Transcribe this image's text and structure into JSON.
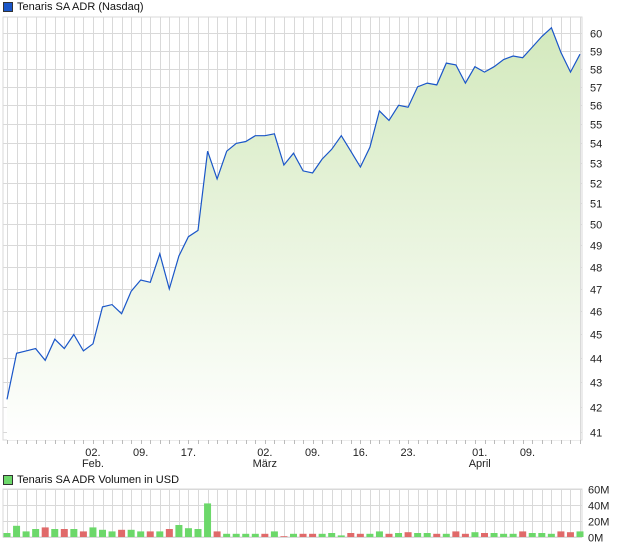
{
  "price_legend": "Tenaris SA ADR (Nasdaq)",
  "volume_legend": "Tenaris SA ADR Volumen in USD",
  "colors": {
    "line": "#1a56c8",
    "fill_top": "#d3e9bd",
    "up": "#6cd86a",
    "down": "#e06a6a",
    "grid": "#d9d9d9",
    "price_swatch": "#1a56c8",
    "volume_swatch": "#6cd86a"
  },
  "chart_data": [
    {
      "type": "area",
      "y_scale": "log",
      "ylim": [
        40.6,
        61
      ],
      "yticks": [
        41,
        42,
        43,
        44,
        45,
        46,
        47,
        48,
        49,
        50,
        51,
        52,
        53,
        54,
        55,
        56,
        57,
        58,
        59,
        60
      ],
      "grid": true,
      "xticks": [
        {
          "index": 9,
          "label": "02.",
          "month": "Feb."
        },
        {
          "index": 14,
          "label": "09.",
          "month": ""
        },
        {
          "index": 19,
          "label": "17.",
          "month": ""
        },
        {
          "index": 27,
          "label": "02.",
          "month": "März"
        },
        {
          "index": 32,
          "label": "09.",
          "month": ""
        },
        {
          "index": 37,
          "label": "16.",
          "month": ""
        },
        {
          "index": 42,
          "label": "23.",
          "month": ""
        },
        {
          "index": 49.5,
          "label": "01.",
          "month": "April"
        },
        {
          "index": 54.5,
          "label": "09.",
          "month": ""
        }
      ],
      "values": [
        42.3,
        44.2,
        44.3,
        44.4,
        43.9,
        44.8,
        44.4,
        45.0,
        44.3,
        44.6,
        46.2,
        46.3,
        45.9,
        46.9,
        47.4,
        47.3,
        48.6,
        47.0,
        48.5,
        49.4,
        49.7,
        53.6,
        52.2,
        53.6,
        54.0,
        54.1,
        54.4,
        54.4,
        54.5,
        52.9,
        53.5,
        52.6,
        52.5,
        53.2,
        53.7,
        54.4,
        53.6,
        52.8,
        53.8,
        55.7,
        55.2,
        56.0,
        55.9,
        57.0,
        57.2,
        57.1,
        58.3,
        58.2,
        57.2,
        58.1,
        57.8,
        58.1,
        58.5,
        58.7,
        58.6,
        59.2,
        59.8,
        60.3,
        58.9,
        57.8,
        58.8
      ]
    },
    {
      "type": "bar",
      "unit": "M USD",
      "ylim": [
        0,
        60
      ],
      "yticks": [
        {
          "v": 0,
          "label": "0M"
        },
        {
          "v": 20,
          "label": "20M"
        },
        {
          "v": 40,
          "label": "40M"
        },
        {
          "v": 60,
          "label": "60M"
        }
      ],
      "grid": true,
      "values": [
        5,
        14,
        7,
        10,
        12,
        10,
        10,
        10,
        7,
        12,
        9,
        7,
        9,
        9,
        7,
        7,
        7,
        10,
        15,
        11,
        10,
        42,
        7,
        4,
        4,
        4,
        4,
        4,
        7,
        1,
        4,
        4,
        4,
        4,
        5,
        2,
        5,
        4,
        4,
        7,
        4,
        5,
        6,
        5,
        5,
        4,
        4,
        7,
        4,
        6,
        5,
        5,
        4,
        4,
        7,
        5,
        5,
        4,
        7,
        6,
        7
      ],
      "direction": [
        "up",
        "up",
        "up",
        "up",
        "down",
        "up",
        "down",
        "up",
        "down",
        "up",
        "up",
        "up",
        "down",
        "up",
        "up",
        "down",
        "up",
        "down",
        "up",
        "up",
        "up",
        "up",
        "down",
        "up",
        "up",
        "up",
        "up",
        "down",
        "up",
        "down",
        "up",
        "down",
        "down",
        "up",
        "up",
        "up",
        "down",
        "down",
        "up",
        "up",
        "down",
        "up",
        "down",
        "up",
        "up",
        "down",
        "up",
        "down",
        "down",
        "up",
        "down",
        "up",
        "up",
        "up",
        "down",
        "up",
        "up",
        "up",
        "down",
        "down",
        "up"
      ]
    }
  ]
}
